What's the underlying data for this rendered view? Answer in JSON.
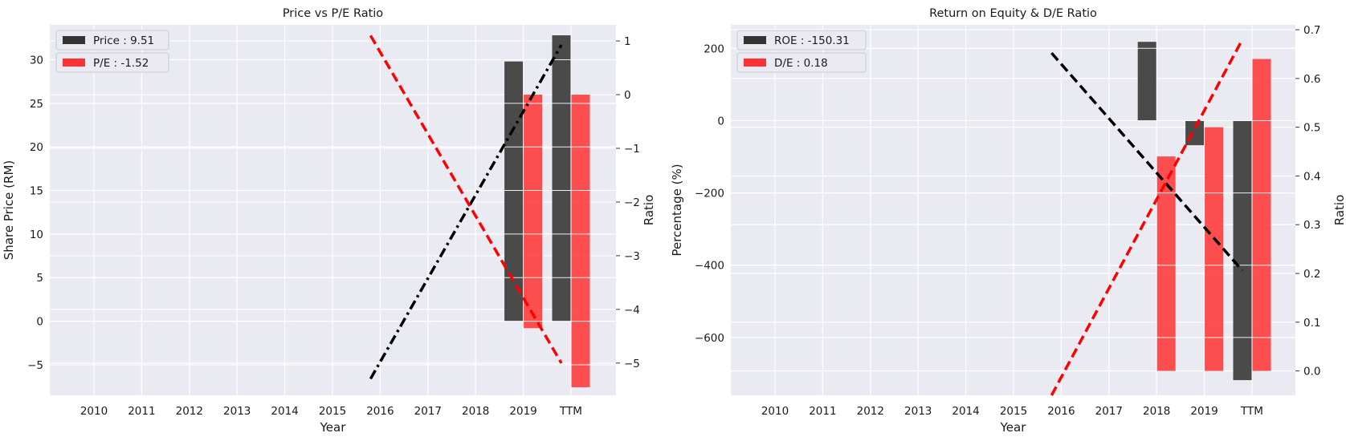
{
  "chart_data": [
    {
      "type": "bar",
      "title": "Price vs P/E Ratio",
      "xlabel": "Year",
      "ylabel_left": "Share Price (RM)",
      "ylabel_right": "Ratio",
      "categories": [
        "2010",
        "2011",
        "2012",
        "2013",
        "2014",
        "2015",
        "2016",
        "2017",
        "2018",
        "2019",
        "TTM"
      ],
      "ylim_left": [
        -8.5,
        34
      ],
      "ylim_right": [
        -5.6,
        1.3
      ],
      "yticks_left": [
        -5,
        0,
        5,
        10,
        15,
        20,
        25,
        30
      ],
      "yticks_right": [
        -5,
        -4,
        -3,
        -2,
        -1,
        0,
        1
      ],
      "legend": {
        "placement": "top-left",
        "entries": [
          "Price : 9.51",
          "P/E : -1.52"
        ]
      },
      "grid": true,
      "series": [
        {
          "name": "Price",
          "axis": "left",
          "color": "#333333",
          "points": [
            {
              "x": "2019",
              "value": 29.8
            },
            {
              "x": "TTM",
              "value": 32.8
            }
          ]
        },
        {
          "name": "P/E",
          "axis": "right",
          "color": "#ff3333",
          "points": [
            {
              "x": "2019",
              "value": -4.35
            },
            {
              "x": "TTM",
              "value": -5.45
            }
          ]
        }
      ],
      "trendlines": [
        {
          "axis": "left",
          "color": "#000000",
          "style": "dashdot",
          "from": [
            "2016",
            -6.6
          ],
          "to": [
            "TTM",
            31.7
          ]
        },
        {
          "axis": "right",
          "color": "#ff0000",
          "style": "dashed",
          "from": [
            "2016",
            1.1
          ],
          "to": [
            "TTM",
            -5.0
          ]
        }
      ]
    },
    {
      "type": "bar",
      "title": "Return on Equity & D/E Ratio",
      "xlabel": "Year",
      "ylabel_left": "Percentage (%)",
      "ylabel_right": "Ratio",
      "categories": [
        "2010",
        "2011",
        "2012",
        "2013",
        "2014",
        "2015",
        "2016",
        "2017",
        "2018",
        "2019",
        "TTM"
      ],
      "ylim_left": [
        -760,
        265
      ],
      "ylim_right": [
        -0.05,
        0.71
      ],
      "yticks_left": [
        -600,
        -400,
        -200,
        0,
        200
      ],
      "yticks_right": [
        0.0,
        0.1,
        0.2,
        0.3,
        0.4,
        0.5,
        0.6,
        0.7
      ],
      "legend": {
        "placement": "top-left",
        "entries": [
          "ROE : -150.31",
          "D/E : 0.18"
        ]
      },
      "grid": true,
      "series": [
        {
          "name": "ROE",
          "axis": "left",
          "color": "#333333",
          "points": [
            {
              "x": "2018",
              "value": 218
            },
            {
              "x": "2019",
              "value": -68
            },
            {
              "x": "TTM",
              "value": -718
            }
          ]
        },
        {
          "name": "D/E",
          "axis": "right",
          "color": "#ff3333",
          "points": [
            {
              "x": "2018",
              "value": 0.44
            },
            {
              "x": "2019",
              "value": 0.5
            },
            {
              "x": "TTM",
              "value": 0.64
            }
          ]
        }
      ],
      "trendlines": [
        {
          "axis": "left",
          "color": "#000000",
          "style": "dashed",
          "from": [
            "2016",
            187
          ],
          "to": [
            "TTM",
            -415
          ]
        },
        {
          "axis": "right",
          "color": "#ff0000",
          "style": "dashed",
          "from": [
            "2016",
            -0.05
          ],
          "to": [
            "TTM",
            0.68
          ]
        }
      ]
    }
  ]
}
